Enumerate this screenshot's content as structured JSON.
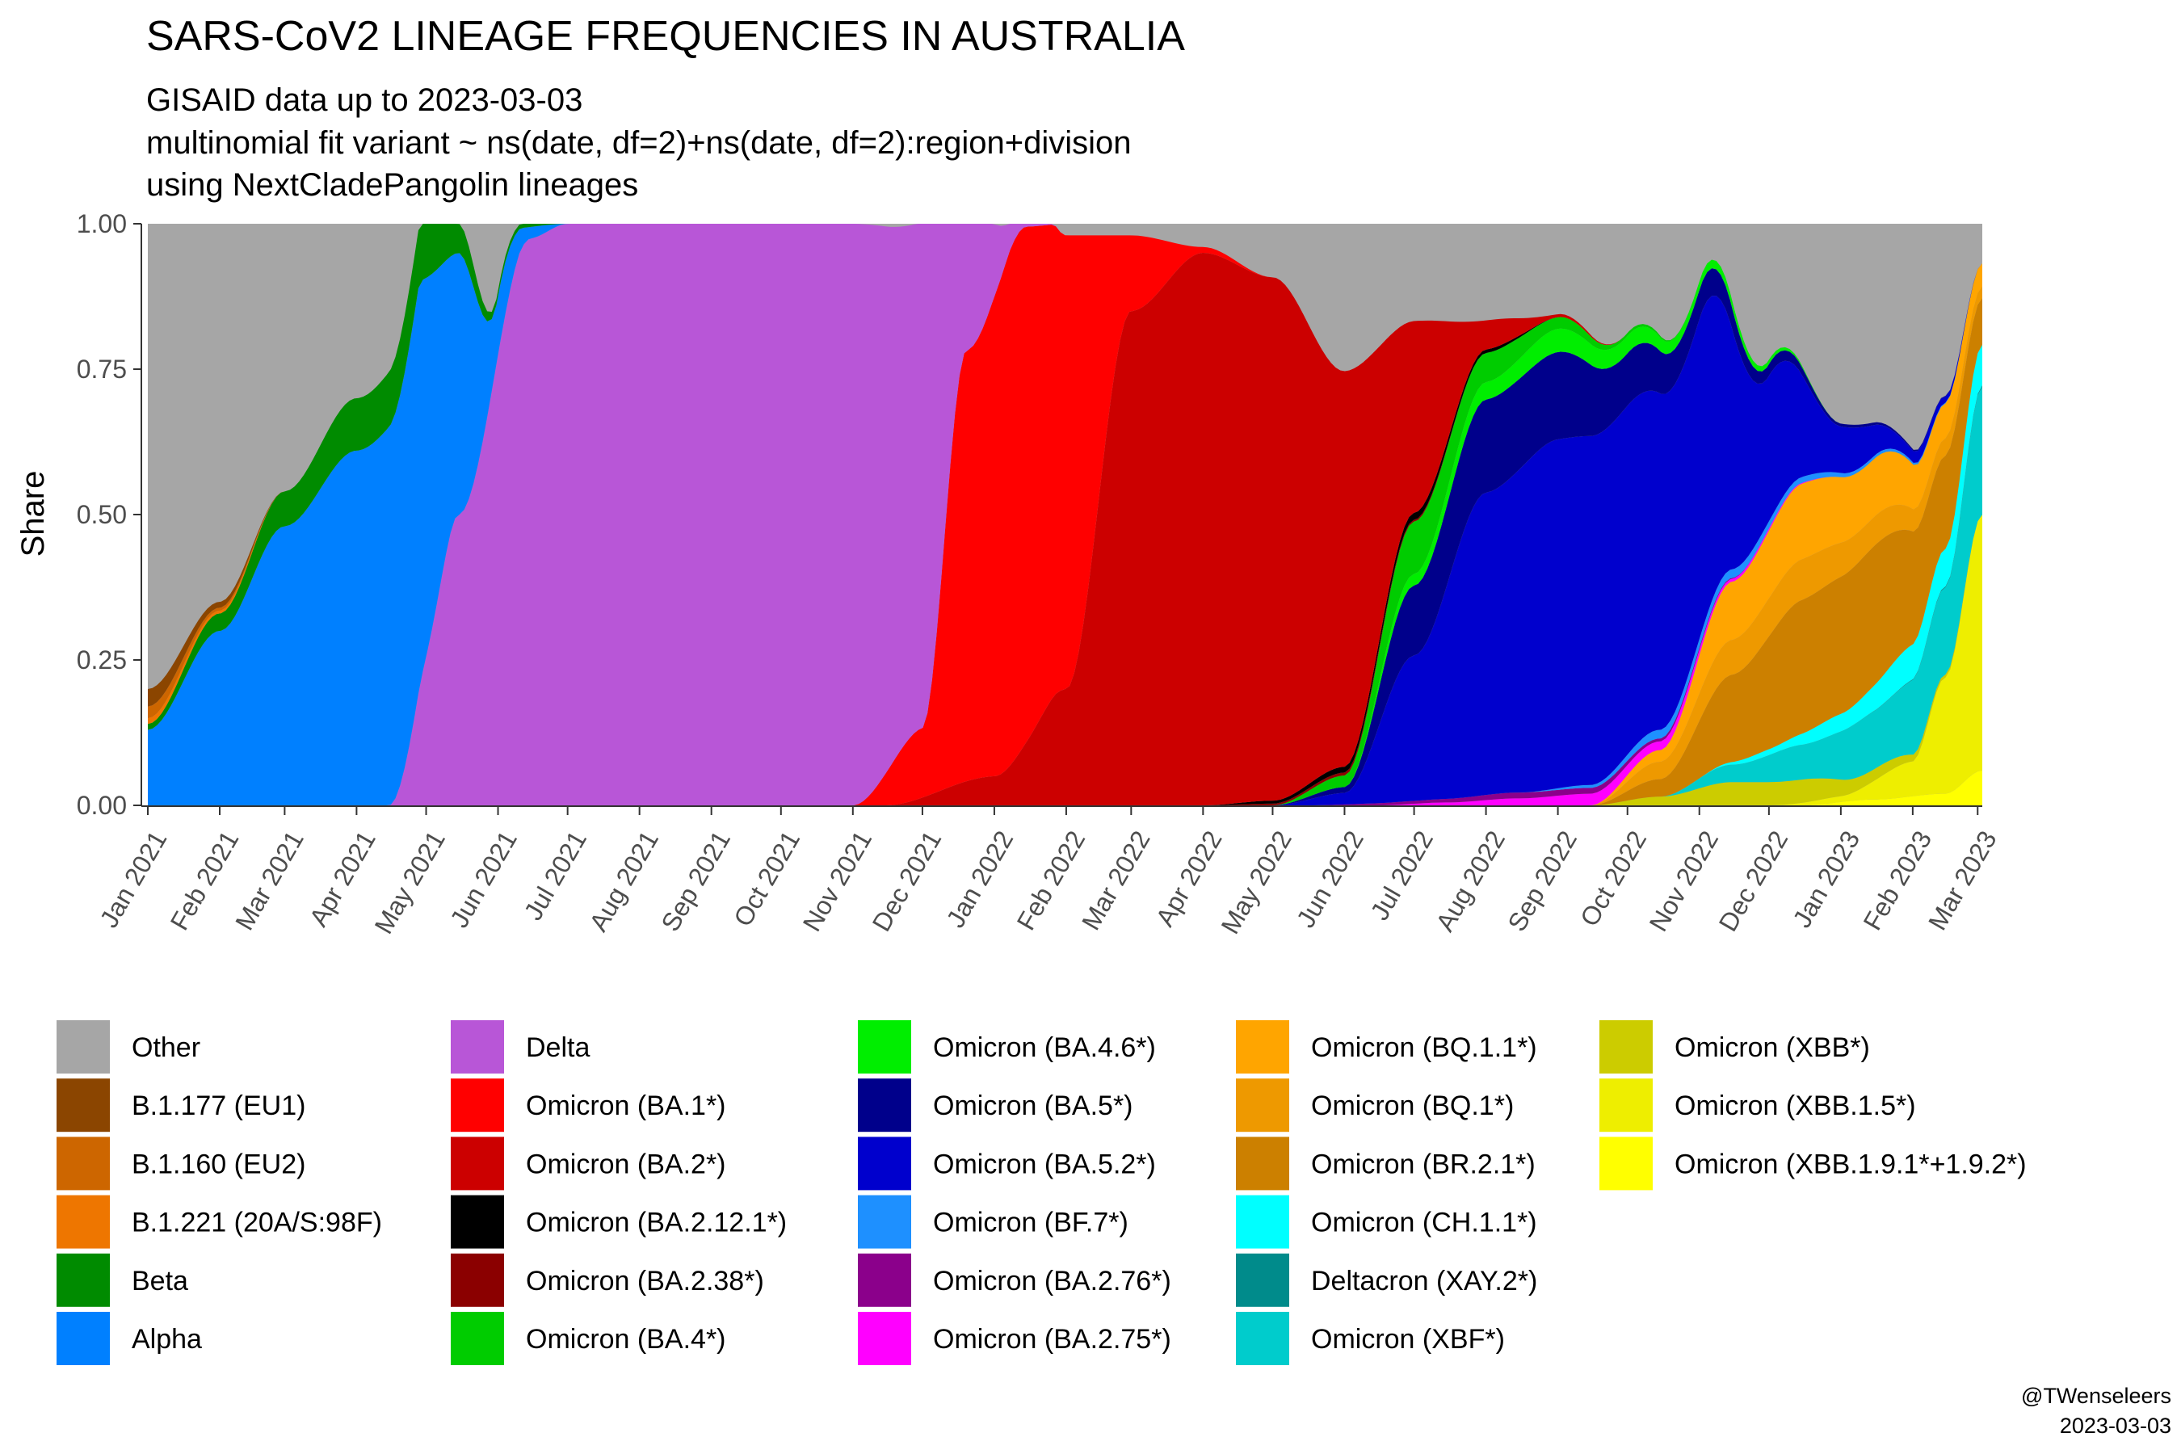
{
  "chart_data": {
    "type": "area",
    "title": "SARS-CoV2 LINEAGE FREQUENCIES IN AUSTRALIA",
    "subtitle_lines": [
      "GISAID data up to 2023-03-03",
      "multinomial fit variant ~ ns(date, df=2)+ns(date, df=2):region+division",
      "using NextCladePangolin lineages"
    ],
    "ylabel": "Share",
    "xlabel": "",
    "ylim": [
      0,
      1
    ],
    "yticks": [
      "0.00",
      "0.25",
      "0.50",
      "0.75",
      "1.00"
    ],
    "x_range": [
      "2021-01-01",
      "2023-03-03"
    ],
    "x_tick_dates": [
      "2021-01-01",
      "2021-02-01",
      "2021-03-01",
      "2021-04-01",
      "2021-05-01",
      "2021-06-01",
      "2021-07-01",
      "2021-08-01",
      "2021-09-01",
      "2021-10-01",
      "2021-11-01",
      "2021-12-01",
      "2022-01-01",
      "2022-02-01",
      "2022-03-01",
      "2022-04-01",
      "2022-05-01",
      "2022-06-01",
      "2022-07-01",
      "2022-08-01",
      "2022-09-01",
      "2022-10-01",
      "2022-11-01",
      "2022-12-01",
      "2023-01-01",
      "2023-02-01",
      "2023-03-01"
    ],
    "x_tick_labels": [
      "Jan 2021",
      "Feb 2021",
      "Mar 2021",
      "Apr 2021",
      "May 2021",
      "Jun 2021",
      "Jul 2021",
      "Aug 2021",
      "Sep 2021",
      "Oct 2021",
      "Nov 2021",
      "Dec 2021",
      "Jan 2022",
      "Feb 2022",
      "Mar 2022",
      "Apr 2022",
      "May 2022",
      "Jun 2022",
      "Jul 2022",
      "Aug 2022",
      "Sep 2022",
      "Oct 2022",
      "Nov 2022",
      "Dec 2022",
      "Jan 2023",
      "Feb 2023",
      "Mar 2023"
    ],
    "stack_order_note": "series listed bottom to top; Other fills the remainder",
    "series": [
      {
        "name": "Omicron (XBB.1.9.1*+1.9.2*)",
        "color": "#FFFF00",
        "points": [
          [
            "2022-12-15",
            0
          ],
          [
            "2023-01-15",
            0.01
          ],
          [
            "2023-02-15",
            0.02
          ],
          [
            "2023-03-03",
            0.06
          ]
        ]
      },
      {
        "name": "Omicron (XBB.1.5*)",
        "color": "#EEEE00",
        "points": [
          [
            "2022-12-01",
            0
          ],
          [
            "2023-01-01",
            0.01
          ],
          [
            "2023-02-01",
            0.06
          ],
          [
            "2023-02-15",
            0.2
          ],
          [
            "2023-03-03",
            0.44
          ]
        ]
      },
      {
        "name": "Omicron (XBB*)",
        "color": "#CCCC00",
        "points": [
          [
            "2022-09-15",
            0
          ],
          [
            "2022-10-15",
            0.015
          ],
          [
            "2022-11-15",
            0.04
          ],
          [
            "2022-12-15",
            0.04
          ],
          [
            "2023-01-15",
            0.02
          ],
          [
            "2023-02-15",
            0.005
          ],
          [
            "2023-03-03",
            0
          ]
        ]
      },
      {
        "name": "Omicron (XBF*)",
        "color": "#00CCCC",
        "points": [
          [
            "2022-10-15",
            0
          ],
          [
            "2022-11-15",
            0.03
          ],
          [
            "2022-12-15",
            0.06
          ],
          [
            "2023-01-15",
            0.1
          ],
          [
            "2023-02-15",
            0.15
          ],
          [
            "2023-03-03",
            0.22
          ]
        ]
      },
      {
        "name": "Deltacron (XAY.2*)",
        "color": "#008B8B",
        "points": [
          [
            "2023-01-01",
            0
          ],
          [
            "2023-03-03",
            0.002
          ]
        ]
      },
      {
        "name": "Omicron (CH.1.1*)",
        "color": "#00FFFF",
        "points": [
          [
            "2022-11-01",
            0
          ],
          [
            "2022-12-01",
            0.01
          ],
          [
            "2023-01-01",
            0.03
          ],
          [
            "2023-02-01",
            0.06
          ],
          [
            "2023-03-03",
            0.07
          ]
        ]
      },
      {
        "name": "Omicron (BR.2.1*)",
        "color": "#CC8000",
        "points": [
          [
            "2022-09-15",
            0
          ],
          [
            "2022-10-15",
            0.03
          ],
          [
            "2022-11-15",
            0.15
          ],
          [
            "2022-12-15",
            0.23
          ],
          [
            "2023-01-15",
            0.24
          ],
          [
            "2023-02-15",
            0.16
          ],
          [
            "2023-03-03",
            0.08
          ]
        ]
      },
      {
        "name": "Omicron (BQ.1*)",
        "color": "#EE9900",
        "points": [
          [
            "2022-09-15",
            0
          ],
          [
            "2022-10-15",
            0.03
          ],
          [
            "2022-11-15",
            0.06
          ],
          [
            "2022-12-15",
            0.07
          ],
          [
            "2023-01-15",
            0.05
          ],
          [
            "2023-02-15",
            0.03
          ],
          [
            "2023-03-03",
            0.02
          ]
        ]
      },
      {
        "name": "Omicron (BQ.1.1*)",
        "color": "#FFA500",
        "points": [
          [
            "2022-09-15",
            0
          ],
          [
            "2022-10-15",
            0.02
          ],
          [
            "2022-11-15",
            0.1
          ],
          [
            "2022-12-15",
            0.13
          ],
          [
            "2023-01-15",
            0.1
          ],
          [
            "2023-02-15",
            0.06
          ],
          [
            "2023-03-03",
            0.04
          ]
        ]
      },
      {
        "name": "Omicron (BA.2.75*)",
        "color": "#FF00FF",
        "points": [
          [
            "2022-06-15",
            0
          ],
          [
            "2022-07-15",
            0.005
          ],
          [
            "2022-08-15",
            0.012
          ],
          [
            "2022-09-15",
            0.02
          ],
          [
            "2022-10-15",
            0.015
          ],
          [
            "2022-11-15",
            0.005
          ],
          [
            "2023-01-01",
            0
          ]
        ]
      },
      {
        "name": "Omicron (BA.2.76*)",
        "color": "#8B008B",
        "points": [
          [
            "2022-05-15",
            0
          ],
          [
            "2022-07-01",
            0.005
          ],
          [
            "2022-08-15",
            0.01
          ],
          [
            "2022-09-15",
            0.01
          ],
          [
            "2022-10-15",
            0.005
          ],
          [
            "2022-12-01",
            0
          ]
        ]
      },
      {
        "name": "Omicron (BF.7*)",
        "color": "#1E90FF",
        "points": [
          [
            "2022-08-15",
            0
          ],
          [
            "2022-09-15",
            0.005
          ],
          [
            "2022-10-15",
            0.015
          ],
          [
            "2022-11-15",
            0.015
          ],
          [
            "2022-12-15",
            0.01
          ],
          [
            "2023-01-15",
            0.005
          ],
          [
            "2023-03-03",
            0
          ]
        ]
      },
      {
        "name": "Omicron (BA.5.2*)",
        "color": "#0000CD",
        "points": [
          [
            "2022-05-01",
            0
          ],
          [
            "2022-06-01",
            0.02
          ],
          [
            "2022-07-01",
            0.25
          ],
          [
            "2022-08-01",
            0.52
          ],
          [
            "2022-09-01",
            0.6
          ],
          [
            "2022-10-01",
            0.6
          ],
          [
            "2022-11-01",
            0.55
          ],
          [
            "2022-12-01",
            0.25
          ],
          [
            "2023-01-01",
            0.08
          ],
          [
            "2023-02-01",
            0.02
          ],
          [
            "2023-03-03",
            0
          ]
        ]
      },
      {
        "name": "Omicron (BA.5*)",
        "color": "#00008B",
        "points": [
          [
            "2022-05-01",
            0
          ],
          [
            "2022-06-01",
            0.01
          ],
          [
            "2022-07-01",
            0.12
          ],
          [
            "2022-08-01",
            0.16
          ],
          [
            "2022-09-01",
            0.15
          ],
          [
            "2022-10-01",
            0.09
          ],
          [
            "2022-11-01",
            0.05
          ],
          [
            "2022-12-01",
            0.02
          ],
          [
            "2023-01-01",
            0.005
          ],
          [
            "2023-03-03",
            0
          ]
        ]
      },
      {
        "name": "Omicron (BA.4.6*)",
        "color": "#00EE00",
        "points": [
          [
            "2022-06-01",
            0
          ],
          [
            "2022-07-01",
            0.02
          ],
          [
            "2022-08-01",
            0.03
          ],
          [
            "2022-09-01",
            0.04
          ],
          [
            "2022-10-01",
            0.03
          ],
          [
            "2022-11-01",
            0.015
          ],
          [
            "2023-01-01",
            0
          ]
        ]
      },
      {
        "name": "Omicron (BA.4*)",
        "color": "#00CC00",
        "points": [
          [
            "2022-05-01",
            0
          ],
          [
            "2022-06-01",
            0.02
          ],
          [
            "2022-07-01",
            0.09
          ],
          [
            "2022-08-01",
            0.05
          ],
          [
            "2022-09-01",
            0.02
          ],
          [
            "2022-10-01",
            0.005
          ],
          [
            "2022-11-01",
            0
          ]
        ]
      },
      {
        "name": "Omicron (BA.2.38*)",
        "color": "#8B0000",
        "points": [
          [
            "2022-04-01",
            0
          ],
          [
            "2022-05-01",
            0.003
          ],
          [
            "2022-06-01",
            0.005
          ],
          [
            "2022-07-01",
            0.003
          ],
          [
            "2022-08-01",
            0
          ]
        ]
      },
      {
        "name": "Omicron (BA.2.12.1*)",
        "color": "#000000",
        "points": [
          [
            "2022-04-01",
            0
          ],
          [
            "2022-05-01",
            0.005
          ],
          [
            "2022-06-01",
            0.01
          ],
          [
            "2022-07-01",
            0.012
          ],
          [
            "2022-08-01",
            0.006
          ],
          [
            "2022-09-01",
            0
          ]
        ]
      },
      {
        "name": "Omicron (BA.2*)",
        "color": "#CC0000",
        "points": [
          [
            "2021-11-15",
            0
          ],
          [
            "2022-01-01",
            0.05
          ],
          [
            "2022-02-01",
            0.2
          ],
          [
            "2022-03-01",
            0.85
          ],
          [
            "2022-04-01",
            0.95
          ],
          [
            "2022-05-01",
            0.9
          ],
          [
            "2022-06-01",
            0.68
          ],
          [
            "2022-07-01",
            0.33
          ],
          [
            "2022-08-01",
            0.05
          ],
          [
            "2022-09-01",
            0.005
          ],
          [
            "2022-10-01",
            0
          ]
        ]
      },
      {
        "name": "Omicron (BA.1*)",
        "color": "#FF0000",
        "points": [
          [
            "2021-11-01",
            0
          ],
          [
            "2021-12-01",
            0.12
          ],
          [
            "2021-12-20",
            0.75
          ],
          [
            "2022-01-15",
            0.92
          ],
          [
            "2022-02-01",
            0.78
          ],
          [
            "2022-03-01",
            0.13
          ],
          [
            "2022-04-01",
            0.01
          ],
          [
            "2022-05-01",
            0
          ]
        ]
      },
      {
        "name": "Delta",
        "color": "#B856D7",
        "points": [
          [
            "2021-04-15",
            0
          ],
          [
            "2021-05-15",
            0.5
          ],
          [
            "2021-06-15",
            0.98
          ],
          [
            "2021-07-01",
            1.0
          ],
          [
            "2021-11-01",
            1.0
          ],
          [
            "2021-12-01",
            0.87
          ],
          [
            "2021-12-20",
            0.22
          ],
          [
            "2022-01-15",
            0.005
          ],
          [
            "2022-02-01",
            0
          ]
        ]
      },
      {
        "name": "Alpha",
        "color": "#0080FF",
        "points": [
          [
            "2021-01-01",
            0.13
          ],
          [
            "2021-02-01",
            0.3
          ],
          [
            "2021-03-01",
            0.48
          ],
          [
            "2021-04-01",
            0.61
          ],
          [
            "2021-05-01",
            0.7
          ],
          [
            "2021-05-15",
            0.45
          ],
          [
            "2021-06-01",
            0.1
          ],
          [
            "2021-06-15",
            0.02
          ],
          [
            "2021-07-01",
            0
          ]
        ]
      },
      {
        "name": "Beta",
        "color": "#008B00",
        "points": [
          [
            "2021-01-01",
            0.01
          ],
          [
            "2021-02-01",
            0.03
          ],
          [
            "2021-03-01",
            0.06
          ],
          [
            "2021-04-01",
            0.09
          ],
          [
            "2021-05-01",
            0.1
          ],
          [
            "2021-05-15",
            0.05
          ],
          [
            "2021-06-01",
            0.01
          ],
          [
            "2021-07-01",
            0
          ]
        ]
      },
      {
        "name": "B.1.221 (20A/S:98F)",
        "color": "#EE7600",
        "points": [
          [
            "2021-01-01",
            0.01
          ],
          [
            "2021-02-01",
            0.005
          ],
          [
            "2021-03-01",
            0
          ]
        ]
      },
      {
        "name": "B.1.160 (EU2)",
        "color": "#CD6600",
        "points": [
          [
            "2021-01-01",
            0.02
          ],
          [
            "2021-02-01",
            0.005
          ],
          [
            "2021-03-01",
            0
          ]
        ]
      },
      {
        "name": "B.1.177 (EU1)",
        "color": "#8B4500",
        "points": [
          [
            "2021-01-01",
            0.03
          ],
          [
            "2021-02-01",
            0.01
          ],
          [
            "2021-03-01",
            0
          ]
        ]
      },
      {
        "name": "Other",
        "color": "#A6A6A6",
        "points": []
      }
    ]
  },
  "legend": {
    "columns": [
      [
        {
          "label": "Other",
          "color": "#A6A6A6"
        },
        {
          "label": "B.1.177 (EU1)",
          "color": "#8B4500"
        },
        {
          "label": "B.1.160 (EU2)",
          "color": "#CD6600"
        },
        {
          "label": "B.1.221 (20A/S:98F)",
          "color": "#EE7600"
        },
        {
          "label": "Beta",
          "color": "#008B00"
        },
        {
          "label": "Alpha",
          "color": "#0080FF"
        }
      ],
      [
        {
          "label": "Delta",
          "color": "#B856D7"
        },
        {
          "label": "Omicron (BA.1*)",
          "color": "#FF0000"
        },
        {
          "label": "Omicron (BA.2*)",
          "color": "#CC0000"
        },
        {
          "label": "Omicron (BA.2.12.1*)",
          "color": "#000000"
        },
        {
          "label": "Omicron (BA.2.38*)",
          "color": "#8B0000"
        },
        {
          "label": "Omicron (BA.4*)",
          "color": "#00CC00"
        }
      ],
      [
        {
          "label": "Omicron (BA.4.6*)",
          "color": "#00EE00"
        },
        {
          "label": "Omicron (BA.5*)",
          "color": "#00008B"
        },
        {
          "label": "Omicron (BA.5.2*)",
          "color": "#0000CD"
        },
        {
          "label": "Omicron (BF.7*)",
          "color": "#1E90FF"
        },
        {
          "label": "Omicron (BA.2.76*)",
          "color": "#8B008B"
        },
        {
          "label": "Omicron (BA.2.75*)",
          "color": "#FF00FF"
        }
      ],
      [
        {
          "label": "Omicron (BQ.1.1*)",
          "color": "#FFA500"
        },
        {
          "label": "Omicron (BQ.1*)",
          "color": "#EE9900"
        },
        {
          "label": "Omicron (BR.2.1*)",
          "color": "#CC8000"
        },
        {
          "label": "Omicron (CH.1.1*)",
          "color": "#00FFFF"
        },
        {
          "label": "Deltacron (XAY.2*)",
          "color": "#008B8B"
        },
        {
          "label": "Omicron (XBF*)",
          "color": "#00CCCC"
        }
      ],
      [
        {
          "label": "Omicron (XBB*)",
          "color": "#CCCC00"
        },
        {
          "label": "Omicron (XBB.1.5*)",
          "color": "#EEEE00"
        },
        {
          "label": "Omicron (XBB.1.9.1*+1.9.2*)",
          "color": "#FFFF00"
        }
      ]
    ]
  },
  "caption": {
    "author": "@TWenseleers",
    "date": "2023-03-03"
  }
}
